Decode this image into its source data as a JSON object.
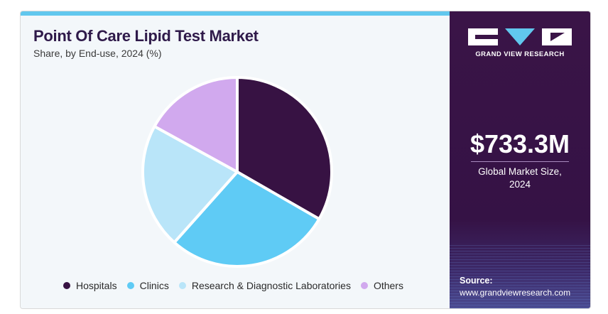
{
  "title": "Point Of Care Lipid Test Market",
  "subtitle": "Share, by End-use, 2024 (%)",
  "brand": {
    "name": "GRAND VIEW RESEARCH",
    "logo_colors": {
      "blocks": "#ffffff",
      "triangle": "#61c7ee"
    }
  },
  "stat": {
    "value": "$733.3M",
    "label_line1": "Global Market Size,",
    "label_line2": "2024"
  },
  "source": {
    "label": "Source:",
    "url": "www.grandviewresearch.com"
  },
  "chart_data": {
    "type": "pie",
    "title": "Point Of Care Lipid Test Market",
    "subtitle": "Share, by End-use, 2024 (%)",
    "categories": [
      "Hospitals",
      "Clinics",
      "Research & Diagnostic Laboratories",
      "Others"
    ],
    "values": [
      33.3,
      28.3,
      21.4,
      17.0
    ],
    "colors": [
      "#371243",
      "#5fcbf5",
      "#b9e5f9",
      "#d1a9ee"
    ],
    "start_angle_deg": 0,
    "direction": "clockwise",
    "legend_position": "bottom"
  }
}
